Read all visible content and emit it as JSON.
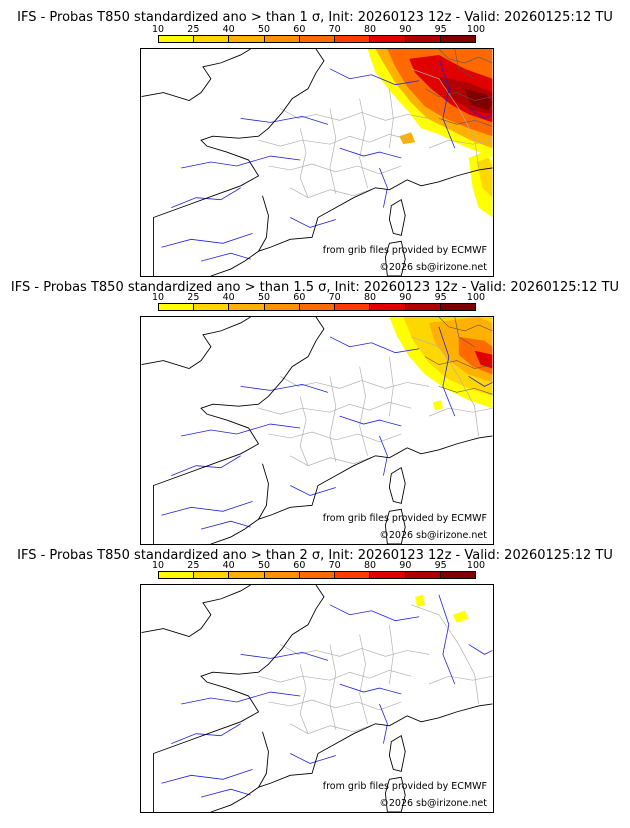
{
  "panels": [
    {
      "title": "IFS - Probas T850  standardized ano > than 1 σ, Init: 20260123 12z - Valid: 20260125:12 TU",
      "threshold_sigma": 1,
      "credit_source": "from grib files provided by ECMWF",
      "credit_copyright": "©2026 sb@irizone.net"
    },
    {
      "title": "IFS - Probas T850  standardized ano > than 1.5 σ, Init: 20260123 12z - Valid: 20260125:12 TU",
      "threshold_sigma": 1.5,
      "credit_source": "from grib files provided by ECMWF",
      "credit_copyright": "©2026 sb@irizone.net"
    },
    {
      "title": "IFS - Probas T850  standardized ano > than 2 σ, Init: 20260123 12z - Valid: 20260125:12 TU",
      "threshold_sigma": 2,
      "credit_source": "from grib files provided by ECMWF",
      "credit_copyright": "©2026 sb@irizone.net"
    }
  ],
  "colorbar": {
    "ticks": [
      "10",
      "25",
      "40",
      "50",
      "60",
      "70",
      "80",
      "90",
      "95",
      "100"
    ],
    "colors": [
      "#ffff00",
      "#ffd700",
      "#ffb000",
      "#ff9000",
      "#ff6a00",
      "#ff3c00",
      "#e00000",
      "#b00000",
      "#800000"
    ]
  },
  "map_colors": {
    "coast": "#000000",
    "rivers": "#2020e0",
    "borders": "#b0b0b0"
  }
}
